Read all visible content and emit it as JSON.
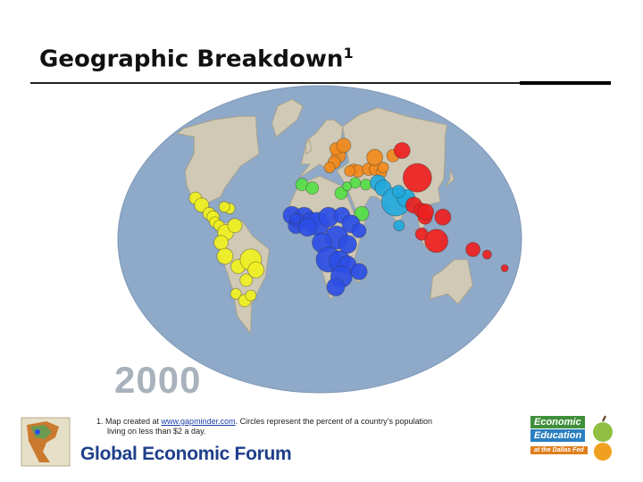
{
  "slide": {
    "title": "Geographic Breakdown",
    "title_sup": "1",
    "year_label": "2000",
    "footnote_prefix": "1. Map created at ",
    "footnote_link": "www.gapminder.com",
    "footnote_suffix": ".  Circles represent the percent of a country’s population",
    "footnote_line2": "living on less than $2 a day.",
    "forum_name": "Global Economic Forum",
    "logo_right_line1": "Economic",
    "logo_right_line2": "Education",
    "logo_right_line3": "at the Dallas Fed"
  },
  "colors": {
    "ocean": "#8fa9c8",
    "land": "#cfc9b5",
    "americas": "#f0f020",
    "europe_central_asia": "#f28a1c",
    "middle_east_north_africa": "#55e045",
    "sub_saharan_africa": "#2d4ee6",
    "south_asia": "#22a9dc",
    "east_asia_pacific": "#ee2020"
  },
  "map_groups": [
    {
      "region": "americas",
      "color": "#f0f020",
      "bubbles": [
        [
          -105,
          24,
          7
        ],
        [
          -98,
          20,
          8
        ],
        [
          -90,
          15,
          7
        ],
        [
          -86,
          13,
          7
        ],
        [
          -84,
          10,
          6
        ],
        [
          -80,
          8,
          6
        ],
        [
          -74,
          4,
          9
        ],
        [
          -66,
          8,
          8
        ],
        [
          -78,
          -2,
          8
        ],
        [
          -75,
          -10,
          9
        ],
        [
          -64,
          -16,
          8
        ],
        [
          -58,
          -24,
          7
        ],
        [
          -52,
          -12,
          12
        ],
        [
          -48,
          -18,
          9
        ],
        [
          -70,
          -32,
          6
        ],
        [
          -63,
          -36,
          7
        ],
        [
          -56,
          -33,
          6
        ],
        [
          -72,
          18,
          6
        ],
        [
          -77,
          19,
          6
        ]
      ]
    },
    {
      "region": "europe_central_asia",
      "color": "#f28a1c",
      "bubbles": [
        [
          30,
          49,
          8
        ],
        [
          28,
          53,
          7
        ],
        [
          25,
          45,
          7
        ],
        [
          20,
          42,
          6
        ],
        [
          44,
          41,
          6
        ],
        [
          48,
          40,
          7
        ],
        [
          59,
          41,
          7
        ],
        [
          66,
          41,
          7
        ],
        [
          71,
          39,
          6
        ],
        [
          74,
          42,
          6
        ],
        [
          68,
          48,
          9
        ],
        [
          40,
          40,
          6
        ],
        [
          37,
          55,
          8
        ],
        [
          88,
          49,
          7
        ]
      ]
    },
    {
      "region": "middle_east_north_africa",
      "color": "#55e045",
      "bubbles": [
        [
          -7,
          32,
          7
        ],
        [
          3,
          30,
          7
        ],
        [
          30,
          27,
          7
        ],
        [
          44,
          33,
          6
        ],
        [
          48,
          15,
          8
        ],
        [
          36,
          31,
          5
        ],
        [
          54,
          32,
          6
        ]
      ]
    },
    {
      "region": "sub_saharan_africa",
      "color": "#2d4ee6",
      "bubbles": [
        [
          -15,
          14,
          10
        ],
        [
          -4,
          13,
          11
        ],
        [
          2,
          10,
          11
        ],
        [
          8,
          9,
          13
        ],
        [
          18,
          13,
          11
        ],
        [
          30,
          14,
          9
        ],
        [
          38,
          9,
          10
        ],
        [
          45,
          5,
          8
        ],
        [
          25,
          1,
          13
        ],
        [
          12,
          -2,
          11
        ],
        [
          18,
          -12,
          14
        ],
        [
          28,
          -13,
          12
        ],
        [
          35,
          -15,
          10
        ],
        [
          30,
          -22,
          12
        ],
        [
          25,
          -28,
          10
        ],
        [
          46,
          -19,
          9
        ],
        [
          35,
          -3,
          10
        ],
        [
          -11,
          8,
          9
        ],
        [
          -10,
          11,
          8
        ],
        [
          -1,
          7,
          10
        ],
        [
          -12,
          12,
          6
        ]
      ]
    },
    {
      "region": "south_asia",
      "color": "#22a9dc",
      "bubbles": [
        [
          66,
          33,
          9
        ],
        [
          70,
          30,
          9
        ],
        [
          80,
          22,
          16
        ],
        [
          90,
          24,
          10
        ],
        [
          84,
          28,
          7
        ],
        [
          81,
          8,
          6
        ]
      ]
    },
    {
      "region": "east_asia_pacific",
      "color": "#ee2020",
      "bubbles": [
        [
          105,
          36,
          16
        ],
        [
          100,
          52,
          9
        ],
        [
          96,
          20,
          9
        ],
        [
          102,
          17,
          8
        ],
        [
          105,
          13,
          8
        ],
        [
          106,
          16,
          9
        ],
        [
          101,
          3,
          7
        ],
        [
          114,
          -1,
          13
        ],
        [
          121,
          13,
          9
        ],
        [
          147,
          -6,
          8
        ],
        [
          160,
          -9,
          5
        ],
        [
          178,
          -17,
          4
        ]
      ]
    }
  ]
}
